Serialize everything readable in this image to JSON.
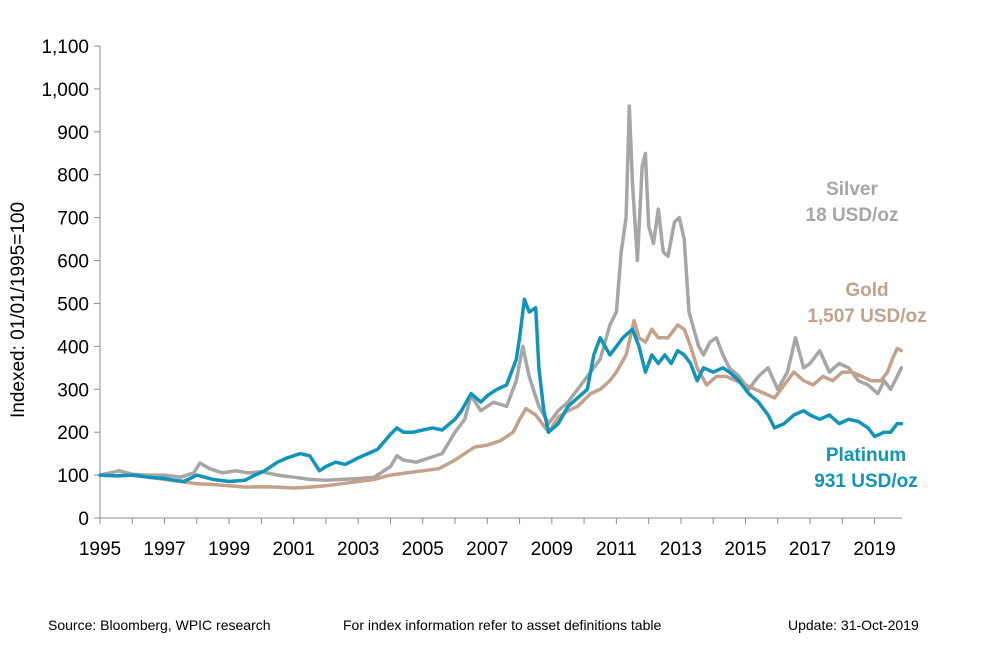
{
  "chart_data": {
    "type": "line",
    "ylabel": "Indexed: 01/01/1995=100",
    "xlabel": "",
    "ylim": [
      0,
      1100
    ],
    "xlim": [
      1995,
      2019.85
    ],
    "y_ticks": [
      0,
      100,
      200,
      300,
      400,
      500,
      600,
      700,
      800,
      900,
      1000,
      1100
    ],
    "y_tick_labels": [
      "0",
      "100",
      "200",
      "300",
      "400",
      "500",
      "600",
      "700",
      "800",
      "900",
      "1,000",
      "1,100"
    ],
    "x_ticks": [
      1995,
      1997,
      1999,
      2001,
      2003,
      2005,
      2007,
      2009,
      2011,
      2013,
      2015,
      2017,
      2019
    ],
    "x_tick_labels": [
      "1995",
      "1997",
      "1999",
      "2001",
      "2003",
      "2005",
      "2007",
      "2009",
      "2011",
      "2013",
      "2015",
      "2017",
      "2019"
    ],
    "grid": false,
    "series": [
      {
        "name": "Silver",
        "unit_label": "18 USD/oz",
        "color": "#a6a6a6",
        "x": [
          1995.0,
          1995.3,
          1995.6,
          1996.0,
          1996.5,
          1997.0,
          1997.5,
          1997.9,
          1998.1,
          1998.4,
          1998.8,
          1999.2,
          1999.6,
          2000.0,
          2000.5,
          2001.0,
          2001.5,
          2002.0,
          2002.5,
          2003.0,
          2003.5,
          2004.0,
          2004.2,
          2004.4,
          2004.8,
          2005.2,
          2005.6,
          2006.0,
          2006.3,
          2006.5,
          2006.8,
          2007.2,
          2007.6,
          2007.9,
          2008.1,
          2008.3,
          2008.6,
          2008.9,
          2009.2,
          2009.5,
          2009.8,
          2010.2,
          2010.5,
          2010.8,
          2011.0,
          2011.15,
          2011.3,
          2011.4,
          2011.5,
          2011.65,
          2011.8,
          2011.9,
          2012.0,
          2012.15,
          2012.3,
          2012.45,
          2012.6,
          2012.8,
          2012.95,
          2013.1,
          2013.25,
          2013.4,
          2013.55,
          2013.7,
          2013.9,
          2014.1,
          2014.3,
          2014.5,
          2014.8,
          2015.1,
          2015.4,
          2015.7,
          2016.0,
          2016.3,
          2016.55,
          2016.8,
          2017.0,
          2017.3,
          2017.6,
          2017.9,
          2018.2,
          2018.5,
          2018.8,
          2019.1,
          2019.3,
          2019.5,
          2019.7,
          2019.83
        ],
        "values": [
          100,
          105,
          110,
          102,
          100,
          100,
          95,
          105,
          128,
          115,
          105,
          110,
          105,
          108,
          100,
          95,
          90,
          88,
          90,
          92,
          95,
          120,
          145,
          135,
          130,
          140,
          150,
          200,
          230,
          285,
          250,
          270,
          260,
          320,
          400,
          330,
          260,
          220,
          250,
          270,
          300,
          340,
          370,
          450,
          480,
          620,
          700,
          960,
          780,
          600,
          820,
          850,
          680,
          640,
          720,
          620,
          610,
          690,
          700,
          650,
          480,
          440,
          400,
          380,
          410,
          420,
          380,
          350,
          330,
          300,
          330,
          350,
          300,
          340,
          420,
          350,
          360,
          390,
          340,
          360,
          350,
          320,
          310,
          290,
          320,
          300,
          330,
          350
        ]
      },
      {
        "name": "Gold",
        "unit_label": "1,507 USD/oz",
        "color": "#c4a18a",
        "x": [
          1995.0,
          1995.5,
          1996.0,
          1996.5,
          1997.0,
          1997.5,
          1998.0,
          1998.5,
          1999.0,
          1999.5,
          2000.0,
          2000.5,
          2001.0,
          2001.5,
          2002.0,
          2002.5,
          2003.0,
          2003.5,
          2004.0,
          2004.5,
          2005.0,
          2005.5,
          2006.0,
          2006.3,
          2006.6,
          2007.0,
          2007.4,
          2007.8,
          2008.0,
          2008.2,
          2008.5,
          2008.7,
          2008.9,
          2009.2,
          2009.5,
          2009.8,
          2010.2,
          2010.5,
          2010.8,
          2011.0,
          2011.3,
          2011.55,
          2011.7,
          2011.9,
          2012.1,
          2012.3,
          2012.6,
          2012.9,
          2013.1,
          2013.3,
          2013.5,
          2013.8,
          2014.1,
          2014.4,
          2014.7,
          2015.0,
          2015.3,
          2015.6,
          2015.9,
          2016.2,
          2016.5,
          2016.8,
          2017.1,
          2017.4,
          2017.7,
          2018.0,
          2018.3,
          2018.6,
          2018.9,
          2019.2,
          2019.4,
          2019.55,
          2019.7,
          2019.83
        ],
        "values": [
          100,
          98,
          100,
          95,
          90,
          85,
          80,
          78,
          75,
          72,
          73,
          72,
          70,
          72,
          75,
          80,
          85,
          90,
          100,
          105,
          110,
          115,
          135,
          150,
          165,
          170,
          180,
          200,
          230,
          255,
          240,
          220,
          200,
          235,
          250,
          260,
          290,
          300,
          320,
          340,
          380,
          460,
          420,
          410,
          440,
          420,
          420,
          450,
          440,
          400,
          350,
          310,
          330,
          330,
          320,
          310,
          300,
          290,
          280,
          310,
          340,
          320,
          310,
          330,
          320,
          340,
          340,
          330,
          320,
          320,
          340,
          370,
          395,
          390
        ]
      },
      {
        "name": "Platinum",
        "unit_label": "931 USD/oz",
        "color": "#1194b9",
        "x": [
          1995.0,
          1995.5,
          1996.0,
          1996.5,
          1997.0,
          1997.3,
          1997.6,
          1998.0,
          1998.5,
          1999.0,
          1999.5,
          1999.8,
          2000.1,
          2000.5,
          2000.8,
          2001.0,
          2001.2,
          2001.5,
          2001.8,
          2002.0,
          2002.3,
          2002.6,
          2003.0,
          2003.3,
          2003.6,
          2004.0,
          2004.2,
          2004.4,
          2004.7,
          2005.0,
          2005.3,
          2005.6,
          2006.0,
          2006.2,
          2006.5,
          2006.8,
          2007.0,
          2007.3,
          2007.6,
          2007.9,
          2008.0,
          2008.15,
          2008.3,
          2008.5,
          2008.6,
          2008.75,
          2008.9,
          2009.2,
          2009.5,
          2009.8,
          2010.1,
          2010.3,
          2010.5,
          2010.8,
          2011.0,
          2011.2,
          2011.5,
          2011.7,
          2011.9,
          2012.1,
          2012.3,
          2012.5,
          2012.7,
          2012.9,
          2013.1,
          2013.3,
          2013.5,
          2013.7,
          2014.0,
          2014.3,
          2014.5,
          2014.8,
          2015.1,
          2015.4,
          2015.7,
          2015.9,
          2016.2,
          2016.5,
          2016.8,
          2017.0,
          2017.3,
          2017.6,
          2017.9,
          2018.2,
          2018.5,
          2018.8,
          2019.0,
          2019.3,
          2019.5,
          2019.7,
          2019.83
        ],
        "values": [
          100,
          98,
          100,
          95,
          92,
          88,
          85,
          100,
          90,
          85,
          88,
          100,
          110,
          130,
          140,
          145,
          150,
          145,
          110,
          120,
          130,
          125,
          140,
          150,
          160,
          195,
          210,
          200,
          200,
          205,
          210,
          205,
          230,
          250,
          290,
          270,
          285,
          300,
          310,
          370,
          420,
          510,
          480,
          490,
          350,
          250,
          200,
          220,
          260,
          280,
          300,
          380,
          420,
          380,
          400,
          420,
          440,
          400,
          340,
          380,
          360,
          380,
          360,
          390,
          380,
          360,
          320,
          350,
          340,
          350,
          340,
          320,
          290,
          270,
          240,
          210,
          220,
          240,
          250,
          240,
          230,
          240,
          220,
          230,
          225,
          210,
          190,
          200,
          200,
          220,
          220
        ]
      }
    ]
  },
  "footer": {
    "source": "Source: Bloomberg, WPIC research",
    "note": "For index information refer to asset definitions table",
    "update": "Update: 31-Oct-2019"
  }
}
